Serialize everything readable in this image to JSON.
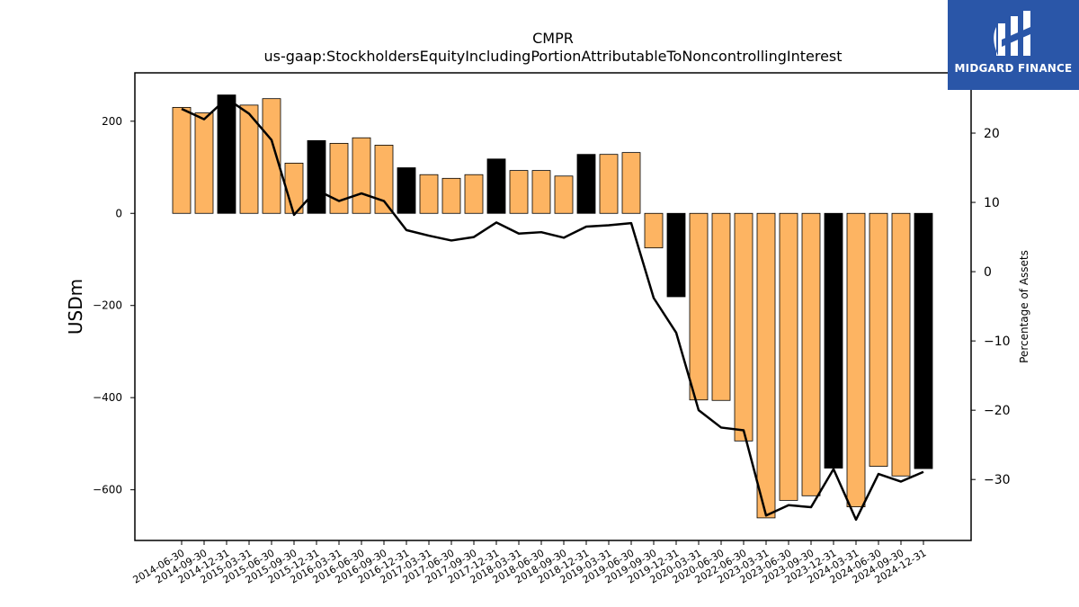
{
  "logo": {
    "text": "MIDGARD FINANCE",
    "background": "#2a56a8"
  },
  "chart_data": {
    "type": "bar",
    "title": "CMPR",
    "subtitle": "us-gaap:StockholdersEquityIncludingPortionAttributableToNoncontrollingInterest",
    "ylabel": "USDm",
    "y2label": "Percentage of Assets",
    "ylim": [
      -710,
      305
    ],
    "y2lim": [
      -38.8,
      28.7
    ],
    "yticks": [
      -600,
      -400,
      -200,
      0,
      200
    ],
    "y2ticks": [
      -30,
      -20,
      -10,
      0,
      10,
      20
    ],
    "grid": false,
    "colors": {
      "bar_default": "#fdb462",
      "bar_highlight": "#000000",
      "line": "#000000"
    },
    "categories": [
      "2014-06-30",
      "2014-09-30",
      "2014-12-31",
      "2015-03-31",
      "2015-06-30",
      "2015-09-30",
      "2015-12-31",
      "2016-03-31",
      "2016-06-30",
      "2016-09-30",
      "2016-12-31",
      "2017-03-31",
      "2017-06-30",
      "2017-09-30",
      "2017-12-31",
      "2018-03-31",
      "2018-06-30",
      "2018-09-30",
      "2018-12-31",
      "2019-03-31",
      "2019-06-30",
      "2019-09-30",
      "2019-12-31",
      "2020-03-31",
      "2020-06-30",
      "2022-06-30",
      "2023-03-31",
      "2023-06-30",
      "2023-09-30",
      "2023-12-31",
      "2024-03-31",
      "2024-06-30",
      "2024-09-30",
      "2024-12-31"
    ],
    "series": [
      {
        "type": "bar",
        "values": [
          230,
          218,
          257,
          235,
          249,
          109,
          158,
          152,
          164,
          148,
          99,
          84,
          76,
          84,
          118,
          93,
          93,
          81,
          128,
          128,
          132,
          -75,
          -181,
          -405,
          -406,
          -494,
          -661,
          -623,
          -613,
          -553,
          -637,
          -549,
          -570,
          -554
        ],
        "highlight": [
          false,
          false,
          true,
          false,
          false,
          false,
          true,
          false,
          false,
          false,
          true,
          false,
          false,
          false,
          true,
          false,
          false,
          false,
          true,
          false,
          false,
          false,
          true,
          false,
          false,
          false,
          false,
          false,
          false,
          true,
          false,
          false,
          false,
          true
        ]
      },
      {
        "type": "line",
        "axis": "right",
        "values": [
          23.5,
          22.0,
          25.0,
          22.8,
          19.0,
          8.2,
          11.8,
          10.2,
          11.3,
          10.2,
          6.0,
          5.2,
          4.5,
          5.0,
          7.1,
          5.5,
          5.7,
          4.9,
          6.5,
          6.7,
          7.0,
          -3.8,
          -8.8,
          -20.0,
          -22.5,
          -22.9,
          -35.2,
          -33.7,
          -34.0,
          -28.5,
          -35.8,
          -29.2,
          -30.3,
          -28.9
        ]
      }
    ]
  }
}
